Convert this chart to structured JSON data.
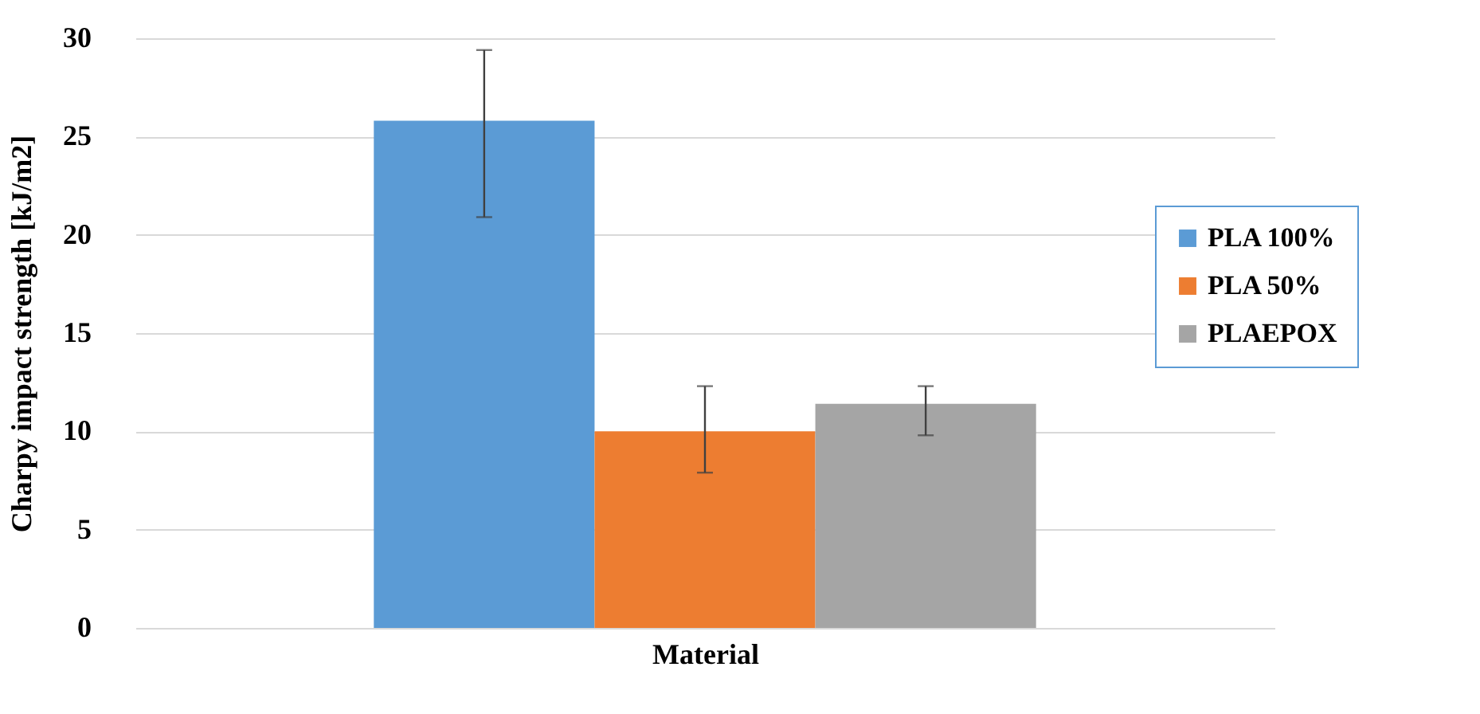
{
  "chart_data": {
    "type": "bar",
    "xlabel": "Material",
    "ylabel": "Charpy impact strength [kJ/m2]",
    "categories": [
      null
    ],
    "series": [
      {
        "name": "PLA 100%",
        "color": "#5b9bd5",
        "values": [
          25.8
        ],
        "errors": [
          [
            20.9,
            29.4
          ]
        ]
      },
      {
        "name": "PLA 50%",
        "color": "#ed7d31",
        "values": [
          10.0
        ],
        "errors": [
          [
            7.9,
            12.3
          ]
        ]
      },
      {
        "name": "PLAEPOX",
        "color": "#a5a5a5",
        "values": [
          11.4
        ],
        "errors": [
          [
            9.8,
            12.3
          ]
        ]
      }
    ],
    "ylim": [
      0,
      30
    ],
    "yticks": [
      0,
      5,
      10,
      15,
      20,
      25,
      30
    ],
    "grid": "y",
    "legend": "right"
  }
}
